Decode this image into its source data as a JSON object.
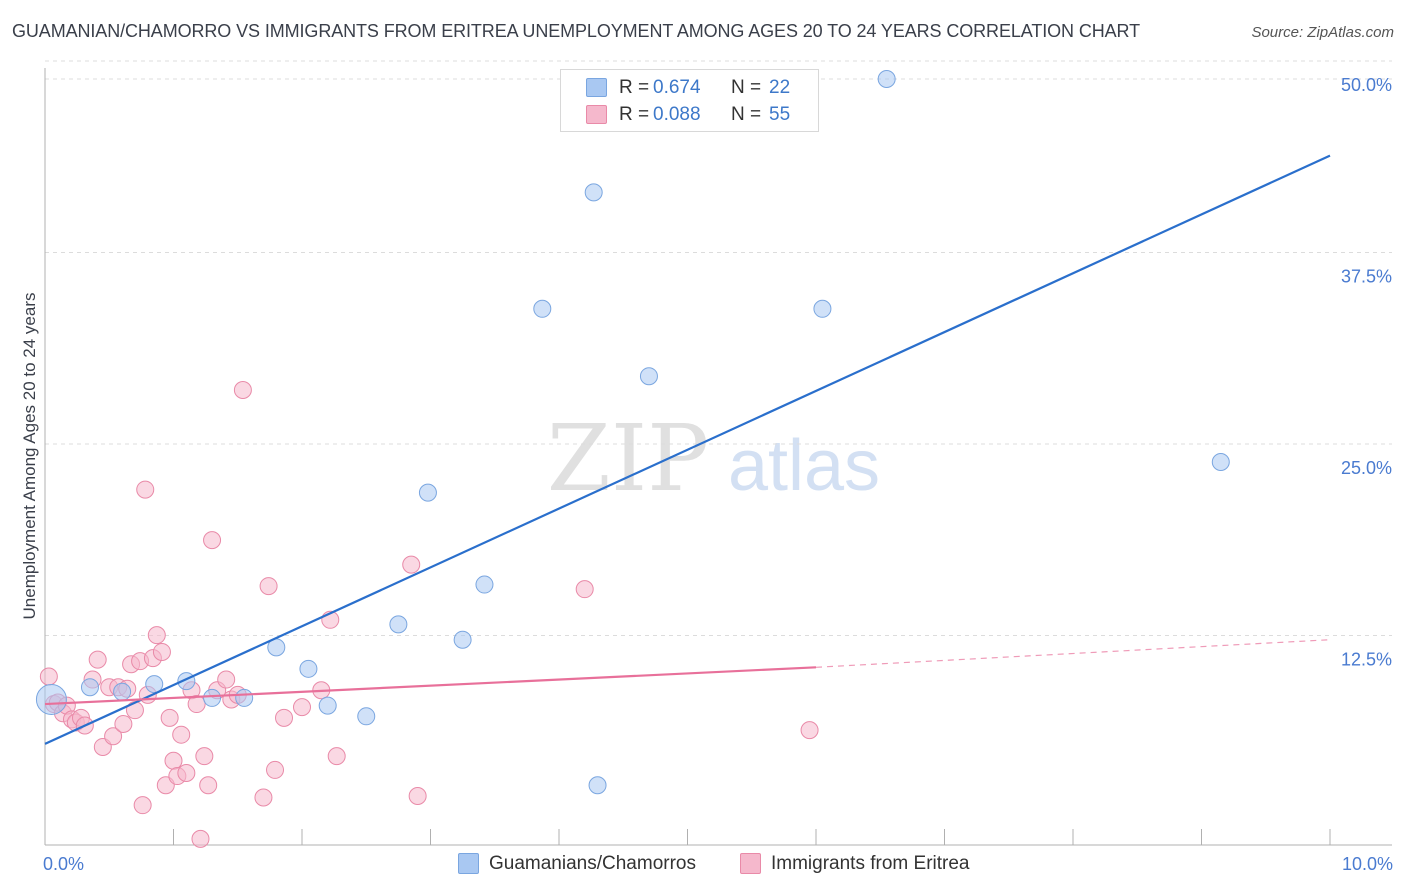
{
  "title": "GUAMANIAN/CHAMORRO VS IMMIGRANTS FROM ERITREA UNEMPLOYMENT AMONG AGES 20 TO 24 YEARS CORRELATION CHART",
  "source": "Source: ZipAtlas.com",
  "watermark": {
    "zip": "ZIP",
    "atlas": "atlas"
  },
  "stats": [
    {
      "r_label": "R =",
      "r_value": "0.674",
      "n_label": "N =",
      "n_value": "22",
      "color": "#a9c8f2"
    },
    {
      "r_label": "R =",
      "r_value": "0.088",
      "n_label": "N =",
      "n_value": "55",
      "color": "#f5b8cc"
    }
  ],
  "legend": [
    {
      "label": "Guamanians/Chamorros",
      "color": "#a9c8f2"
    },
    {
      "label": "Immigrants from Eritrea",
      "color": "#f5b8cc"
    }
  ],
  "chart_data": {
    "type": "scatter",
    "title": "GUAMANIAN/CHAMORRO VS IMMIGRANTS FROM ERITREA UNEMPLOYMENT AMONG AGES 20 TO 24 YEARS CORRELATION CHART",
    "xlabel": "",
    "ylabel": "Unemployment Among Ages 20 to 24 years",
    "xlim": [
      0,
      10
    ],
    "ylim": [
      0,
      50
    ],
    "x_tick_labels": [
      "0.0%",
      "10.0%"
    ],
    "y_ticks": [
      12.5,
      25.0,
      37.5,
      50.0
    ],
    "y_tick_labels": [
      "12.5%",
      "25.0%",
      "37.5%",
      "50.0%"
    ],
    "grid": true,
    "series": [
      {
        "name": "Guamanians/Chamorros",
        "color": "#a9c8f2",
        "stroke": "#7aa6e0",
        "trend_color": "#2a6fcc",
        "trend": {
          "x": [
            0,
            10
          ],
          "y": [
            6.6,
            45.0
          ]
        },
        "points": [
          [
            0.05,
            9.5,
            "big"
          ],
          [
            0.35,
            10.3
          ],
          [
            0.6,
            10.0
          ],
          [
            0.85,
            10.5
          ],
          [
            1.1,
            10.7
          ],
          [
            1.3,
            9.6
          ],
          [
            1.55,
            9.6
          ],
          [
            1.8,
            12.9
          ],
          [
            2.05,
            11.5
          ],
          [
            2.2,
            9.1
          ],
          [
            2.5,
            8.4
          ],
          [
            2.75,
            14.4
          ],
          [
            2.98,
            23.0
          ],
          [
            3.25,
            13.4
          ],
          [
            3.42,
            17.0
          ],
          [
            3.87,
            35.0
          ],
          [
            4.27,
            42.6
          ],
          [
            4.3,
            3.9
          ],
          [
            4.7,
            30.6
          ],
          [
            6.05,
            35.0
          ],
          [
            6.55,
            50.0
          ],
          [
            9.15,
            25.0
          ]
        ]
      },
      {
        "name": "Immigrants from Eritrea",
        "color": "#f5b8cc",
        "stroke": "#e98aa8",
        "trend_color": "#e8709a",
        "trend": {
          "x": [
            0,
            6.0
          ],
          "y": [
            9.2,
            11.6
          ]
        },
        "trend_dashed": {
          "x": [
            6.0,
            10
          ],
          "y": [
            11.6,
            13.4
          ]
        },
        "points": [
          [
            0.03,
            11.0
          ],
          [
            0.07,
            9.2
          ],
          [
            0.1,
            9.3
          ],
          [
            0.14,
            8.6
          ],
          [
            0.17,
            9.1
          ],
          [
            0.21,
            8.2
          ],
          [
            0.24,
            8.0
          ],
          [
            0.28,
            8.3
          ],
          [
            0.31,
            7.8
          ],
          [
            0.37,
            10.8
          ],
          [
            0.41,
            12.1
          ],
          [
            0.45,
            6.4
          ],
          [
            0.5,
            10.3
          ],
          [
            0.53,
            7.1
          ],
          [
            0.57,
            10.3
          ],
          [
            0.61,
            7.9
          ],
          [
            0.64,
            10.2
          ],
          [
            0.67,
            11.8
          ],
          [
            0.7,
            8.8
          ],
          [
            0.74,
            12.0
          ],
          [
            0.76,
            2.6
          ],
          [
            0.78,
            23.2
          ],
          [
            0.8,
            9.8
          ],
          [
            0.84,
            12.2
          ],
          [
            0.87,
            13.7
          ],
          [
            0.91,
            12.6
          ],
          [
            0.94,
            3.9
          ],
          [
            0.97,
            8.3
          ],
          [
            1.0,
            5.5
          ],
          [
            1.03,
            4.5
          ],
          [
            1.06,
            7.2
          ],
          [
            1.1,
            4.7
          ],
          [
            1.14,
            10.1
          ],
          [
            1.18,
            9.2
          ],
          [
            1.21,
            0.4
          ],
          [
            1.24,
            5.8
          ],
          [
            1.27,
            3.9
          ],
          [
            1.3,
            19.9
          ],
          [
            1.34,
            10.1
          ],
          [
            1.41,
            10.8
          ],
          [
            1.45,
            9.5
          ],
          [
            1.5,
            9.8
          ],
          [
            1.54,
            29.7
          ],
          [
            1.7,
            3.1
          ],
          [
            1.74,
            16.9
          ],
          [
            1.79,
            4.9
          ],
          [
            1.86,
            8.3
          ],
          [
            2.0,
            9.0
          ],
          [
            2.15,
            10.1
          ],
          [
            2.22,
            14.7
          ],
          [
            2.27,
            5.8
          ],
          [
            2.85,
            18.3
          ],
          [
            2.9,
            3.2
          ],
          [
            4.2,
            16.7
          ],
          [
            5.95,
            7.5
          ]
        ]
      }
    ]
  }
}
